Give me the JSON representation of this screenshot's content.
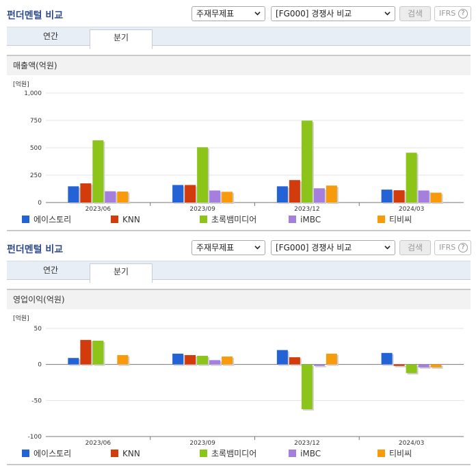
{
  "colors": [
    "#2463d6",
    "#d23b0b",
    "#8cc41a",
    "#a57fdd",
    "#f79b0d"
  ],
  "companies": [
    "에이스토리",
    "KNN",
    "초록뱀미디어",
    "iMBC",
    "티비씨"
  ],
  "panels": [
    {
      "title": "펀더멘털 비교",
      "select1": "주재무제표",
      "select2": "[FG000] 경쟁사 비교",
      "search_label": "검색",
      "ifrs_label": "IFRS",
      "help_label": "?",
      "tabs": [
        {
          "label": "연간",
          "active": false
        },
        {
          "label": "분기",
          "active": true
        }
      ],
      "section_label": "매출액(억원)",
      "unit": "[억원]",
      "chart_data": {
        "type": "bar",
        "categories": [
          "2023/06",
          "2023/09",
          "2023/12",
          "2024/03"
        ],
        "series": [
          {
            "name": "에이스토리",
            "values": [
              148,
              160,
              148,
              118
            ]
          },
          {
            "name": "KNN",
            "values": [
              175,
              160,
              205,
              112
            ]
          },
          {
            "name": "초록뱀미디어",
            "values": [
              568,
              505,
              748,
              455
            ]
          },
          {
            "name": "iMBC",
            "values": [
              103,
              110,
              130,
              110
            ]
          },
          {
            "name": "티비씨",
            "values": [
              100,
              98,
              155,
              90
            ]
          }
        ],
        "ylim": [
          0,
          1000
        ],
        "yticks": [
          0,
          250,
          500,
          750,
          1000
        ],
        "ytick_labels": [
          "0",
          "250",
          "500",
          "750",
          "1,000"
        ]
      }
    },
    {
      "title": "펀더멘털 비교",
      "select1": "주재무제표",
      "select2": "[FG000] 경쟁사 비교",
      "search_label": "검색",
      "ifrs_label": "IFRS",
      "help_label": "?",
      "tabs": [
        {
          "label": "연간",
          "active": false
        },
        {
          "label": "분기",
          "active": true
        }
      ],
      "section_label": "영업이익(억원)",
      "unit": "[억원]",
      "chart_data": {
        "type": "bar",
        "categories": [
          "2023/06",
          "2023/09",
          "2023/12",
          "2024/03"
        ],
        "series": [
          {
            "name": "에이스토리",
            "values": [
              9,
              15,
              20,
              16
            ]
          },
          {
            "name": "KNN",
            "values": [
              34,
              13,
              10,
              -2
            ]
          },
          {
            "name": "초록뱀미디어",
            "values": [
              33,
              12,
              -62,
              -12
            ]
          },
          {
            "name": "iMBC",
            "values": [
              0,
              6,
              -2,
              -4
            ]
          },
          {
            "name": "티비씨",
            "values": [
              13,
              11,
              15,
              -4
            ]
          }
        ],
        "ylim": [
          -100,
          50
        ],
        "yticks": [
          -100,
          -50,
          0,
          50
        ],
        "ytick_labels": [
          "-100",
          "-50",
          "0",
          "50"
        ]
      }
    }
  ]
}
